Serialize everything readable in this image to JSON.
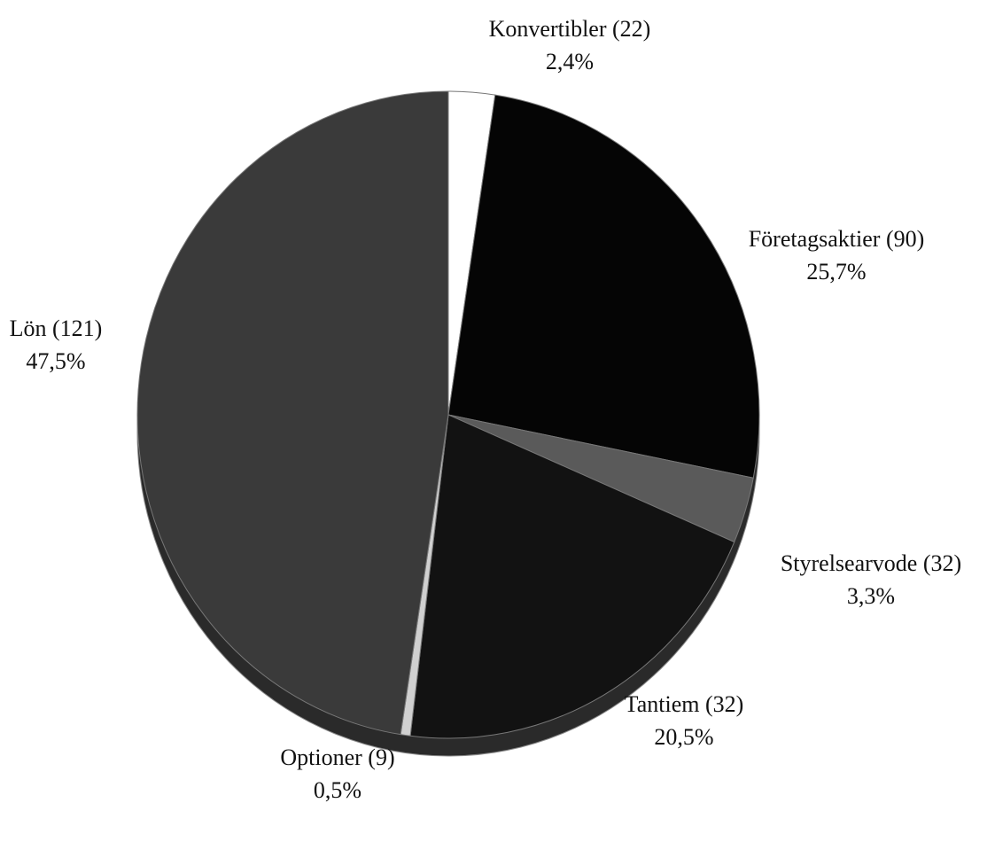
{
  "chart_data": {
    "type": "pie",
    "categories": [
      "Konvertibler (22)",
      "Företagsaktier (90)",
      "Styrelsearvode (32)",
      "Tantiem (32)",
      "Optioner (9)",
      "Lön (121)"
    ],
    "values": [
      2.4,
      25.7,
      3.3,
      20.5,
      0.5,
      47.5
    ],
    "value_labels": [
      "2,4%",
      "25,7%",
      "3,3%",
      "20,5%",
      "0,5%",
      "47,5%"
    ],
    "colors": [
      "#ffffff",
      "#050505",
      "#5a5a5a",
      "#121212",
      "#d0d0d0",
      "#3a3a3a"
    ]
  }
}
